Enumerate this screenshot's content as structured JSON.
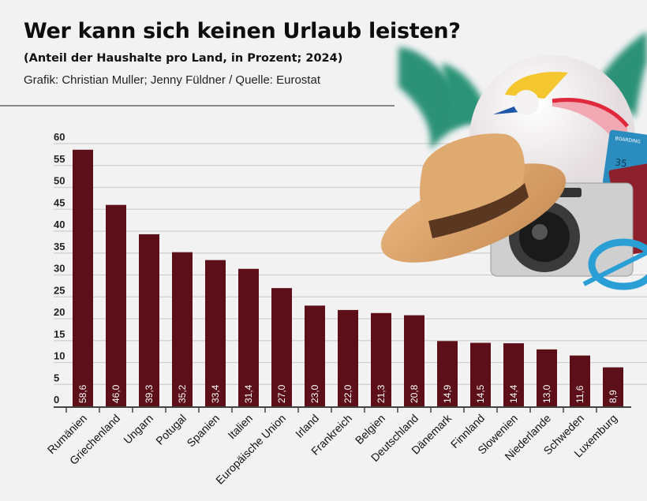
{
  "header": {
    "title": "Wer kann sich keinen Urlaub leisten?",
    "subtitle": "(Anteil der Haushalte pro Land, in Prozent; 2024)",
    "credit": "Grafik: Christian Muller; Jenny Füldner / Quelle: Eurostat"
  },
  "illustration": {
    "ticket_text": "BOARDING",
    "ticket_gate": "35"
  },
  "colors": {
    "bar": "#5c0f19",
    "background": "#f2f2f2",
    "grid": "#cfcfcf"
  },
  "chart_data": {
    "type": "bar",
    "title": "Wer kann sich keinen Urlaub leisten?",
    "subtitle": "(Anteil der Haushalte pro Land, in Prozent; 2024)",
    "categories": [
      "Rumänien",
      "Griechenland",
      "Ungarn",
      "Potugal",
      "Spanien",
      "Italien",
      "Europäische Union",
      "Irland",
      "Frankreich",
      "Belgien",
      "Deutschland",
      "Dänemark",
      "Finnland",
      "Slowenien",
      "Niederlande",
      "Schweden",
      "Luxemburg"
    ],
    "values": [
      58.6,
      46.0,
      39.3,
      35.2,
      33.4,
      31.4,
      27.0,
      23.0,
      22.0,
      21.3,
      20.8,
      14.9,
      14.5,
      14.4,
      13.0,
      11.6,
      8.9
    ],
    "data_labels": [
      "58,6",
      "46,0",
      "39,3",
      "35,2",
      "33,4",
      "31,4",
      "27,0",
      "23,0",
      "22,0",
      "21,3",
      "20,8",
      "14,9",
      "14,5",
      "14,4",
      "13,0",
      "11,6",
      "8,9"
    ],
    "yticks": [
      "0",
      "5",
      "10",
      "15",
      "20",
      "25",
      "30",
      "35",
      "40",
      "45",
      "50",
      "55",
      "60"
    ],
    "ylim": [
      0,
      60
    ],
    "grid": true,
    "xlabel": "",
    "ylabel": ""
  }
}
